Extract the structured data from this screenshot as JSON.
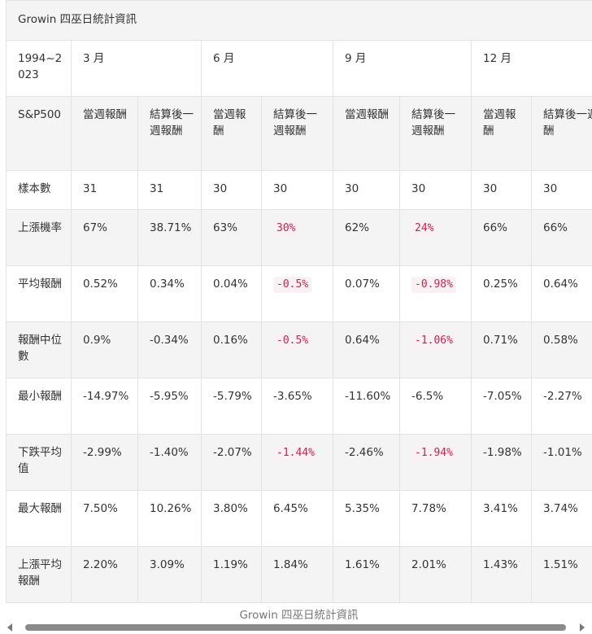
{
  "caption": "Growin 四巫日統計資訊",
  "footer_caption": "Growin 四巫日統計資訊",
  "period_label": "1994~2023",
  "months": [
    "3 月",
    "6 月",
    "9 月",
    "12 月"
  ],
  "index_label": "S&P500",
  "col_types": [
    "當週報酬",
    "結算後一週報酬"
  ],
  "rows": [
    {
      "label": "樣本數",
      "values": [
        "31",
        "31",
        "30",
        "30",
        "30",
        "30",
        "30",
        "30"
      ]
    },
    {
      "label": "上漲機率",
      "values": [
        "67%",
        "38.71%",
        "63%",
        "30%",
        "62%",
        "24%",
        "66%",
        "66%"
      ]
    },
    {
      "label": "平均報酬",
      "values": [
        "0.52%",
        "0.34%",
        "0.04%",
        "-0.5%",
        "0.07%",
        "-0.98%",
        "0.25%",
        "0.64%"
      ]
    },
    {
      "label": "報酬中位數",
      "values": [
        "0.9%",
        "-0.34%",
        "0.16%",
        "-0.5%",
        "0.64%",
        "-1.06%",
        "0.71%",
        "0.58%"
      ]
    },
    {
      "label": "最小報酬",
      "values": [
        "-14.97%",
        "-5.95%",
        "-5.79%",
        "-3.65%",
        "-11.60%",
        "-6.5%",
        "-7.05%",
        "-2.27%"
      ]
    },
    {
      "label": "下跌平均值",
      "values": [
        "-2.99%",
        "-1.40%",
        "-2.07%",
        "-1.44%",
        "-2.46%",
        "-1.94%",
        "-1.98%",
        "-1.01%"
      ]
    },
    {
      "label": "最大報酬",
      "values": [
        "7.50%",
        "10.26%",
        "3.80%",
        "6.45%",
        "5.35%",
        "7.78%",
        "3.41%",
        "3.74%"
      ]
    },
    {
      "label": "上漲平均報酬",
      "values": [
        "2.20%",
        "3.09%",
        "1.19%",
        "1.84%",
        "1.61%",
        "2.01%",
        "1.43%",
        "1.51%"
      ]
    }
  ],
  "highlights": {
    "1": [
      3,
      5
    ],
    "2": [
      3,
      5
    ],
    "3": [
      3,
      5
    ],
    "5": [
      3,
      5
    ]
  },
  "colors": {
    "highlight_text": "#c7254e",
    "highlight_bg": "#f9f1f4",
    "shade_bg": "#f4f4f4",
    "border": "#e3e3e3"
  }
}
